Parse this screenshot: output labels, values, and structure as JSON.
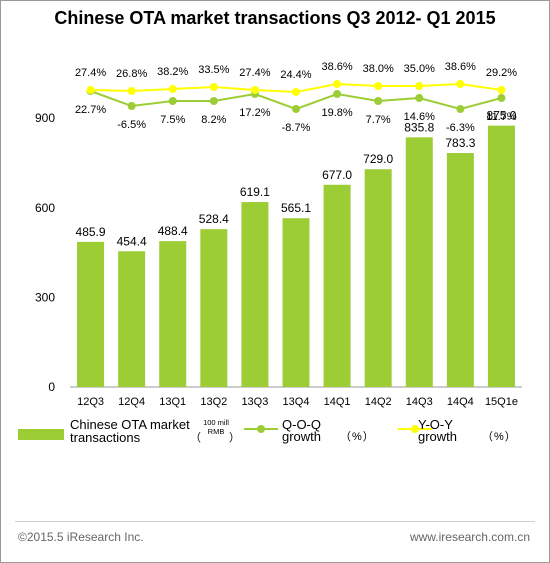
{
  "title": "Chinese OTA market transactions Q3 2012- Q1 2015",
  "footer": {
    "left": "©2015.5 iResearch Inc.",
    "right": "www.iresearch.com.cn"
  },
  "legend": {
    "bar_label": "Chinese OTA  market transactions",
    "bar_unit_open": "（",
    "bar_unit": "100 mill RMB",
    "bar_unit_close": "）",
    "qoq_label": "Q-O-Q growth",
    "qoq_unit": "（%）",
    "yoy_label": "Y-O-Y growth",
    "yoy_unit": "（%）"
  },
  "chart_data": {
    "type": "bar",
    "title": "Chinese OTA market transactions Q3 2012- Q1 2015",
    "categories": [
      "12Q3",
      "12Q4",
      "13Q1",
      "13Q2",
      "13Q3",
      "13Q4",
      "14Q1",
      "14Q2",
      "14Q3",
      "14Q4",
      "15Q1e"
    ],
    "values": [
      485.9,
      454.4,
      488.4,
      528.4,
      619.1,
      565.1,
      677.0,
      729.0,
      835.8,
      783.3,
      875.0
    ],
    "value_labels": [
      "485.9",
      "454.4",
      "488.4",
      "528.4",
      "619.1",
      "565.1",
      "677.0",
      "729.0",
      "835.8",
      "783.3",
      "875.0"
    ],
    "ylim": [
      0,
      1020
    ],
    "yticks": [
      0,
      300,
      600,
      900
    ],
    "grid": false,
    "bar_color": "#9ccd35",
    "series": [
      {
        "name": "Q-O-Q growth",
        "type": "line",
        "color": "#9ccd35",
        "values": [
          22.7,
          -6.5,
          7.5,
          8.2,
          17.2,
          -8.7,
          19.8,
          7.7,
          14.6,
          -6.3,
          11.7
        ],
        "labels": [
          "22.7%",
          "-6.5%",
          "7.5%",
          "8.2%",
          "17.2%",
          "-8.7%",
          "19.8%",
          "7.7%",
          "14.6%",
          "-6.3%",
          "11.7%"
        ]
      },
      {
        "name": "Y-O-Y growth",
        "type": "line",
        "color": "#ffff00",
        "values": [
          27.4,
          26.8,
          38.2,
          33.5,
          27.4,
          24.4,
          38.6,
          38.0,
          35.0,
          38.6,
          29.2
        ],
        "labels": [
          "27.4%",
          "26.8%",
          "38.2%",
          "33.5%",
          "27.4%",
          "24.4%",
          "38.6%",
          "38.0%",
          "35.0%",
          "38.6%",
          "29.2%"
        ]
      }
    ],
    "legend_position": "bottom"
  }
}
